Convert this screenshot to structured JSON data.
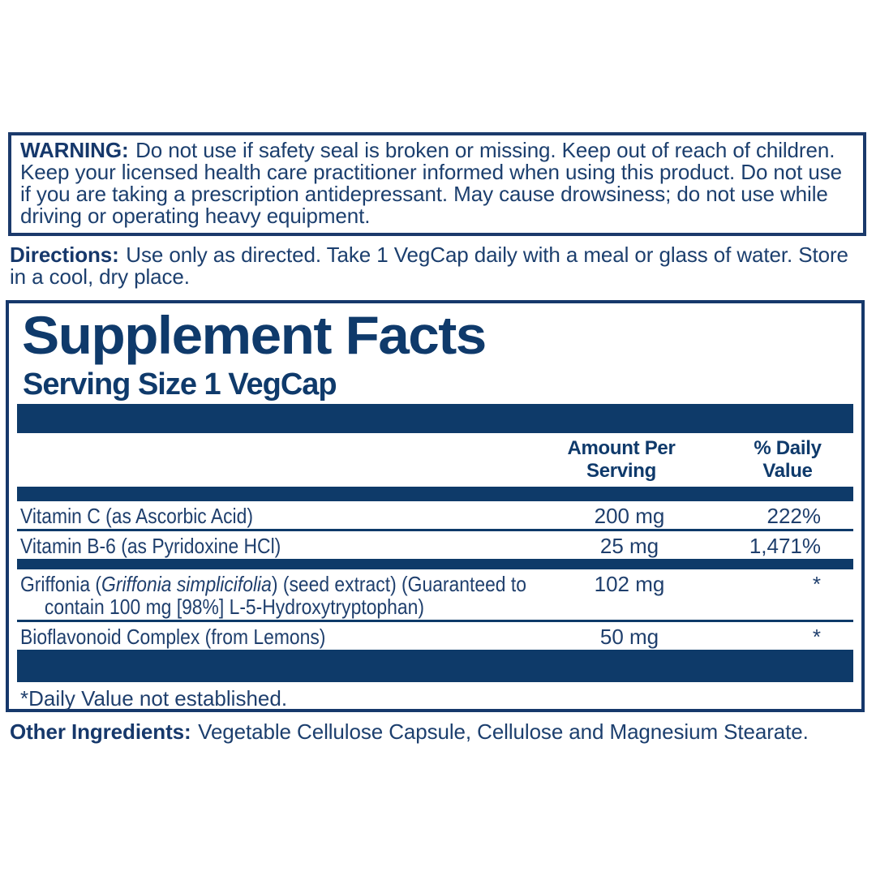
{
  "colors": {
    "navy_bar": "#0e3a69",
    "navy_text": "#1c3f6e",
    "border": "#1b3a6b"
  },
  "warning": {
    "label": "WARNING:",
    "text": "Do not use if safety seal is broken or missing. Keep out of reach of children. Keep your licensed health care practitioner informed when using this product. Do not use if you are taking a prescription antidepressant. May cause drowsiness; do not use while driving or operating heavy equipment."
  },
  "directions": {
    "label": "Directions:",
    "text": "Use only as directed. Take 1 VegCap daily with a meal or glass of water. Store in a cool, dry place."
  },
  "supplement_facts": {
    "title": "Supplement Facts",
    "serving_size": "Serving Size 1 VegCap",
    "columns": {
      "amount": "Amount Per Serving",
      "daily_value": "% Daily Value"
    },
    "rows": [
      {
        "name": "Vitamin C (as Ascorbic Acid)",
        "amount": "200 mg",
        "daily_value": "222%"
      },
      {
        "name": "Vitamin B-6 (as Pyridoxine HCl)",
        "amount": "25 mg",
        "daily_value": "1,471%"
      },
      {
        "name_prefix": "Griffonia (",
        "name_italic": "Griffonia simplicifolia",
        "name_suffix": ") (seed extract) (Guaranteed to",
        "name_line2": "contain 100 mg [98%] L-5-Hydroxytryptophan)",
        "amount": "102 mg",
        "daily_value": "*"
      },
      {
        "name": "Bioflavonoid Complex (from Lemons)",
        "amount": "50 mg",
        "daily_value": "*"
      }
    ],
    "footnote": "*Daily Value not established."
  },
  "other_ingredients": {
    "label": "Other Ingredients:",
    "text": "Vegetable Cellulose Capsule, Cellulose and Magnesium Stearate."
  }
}
